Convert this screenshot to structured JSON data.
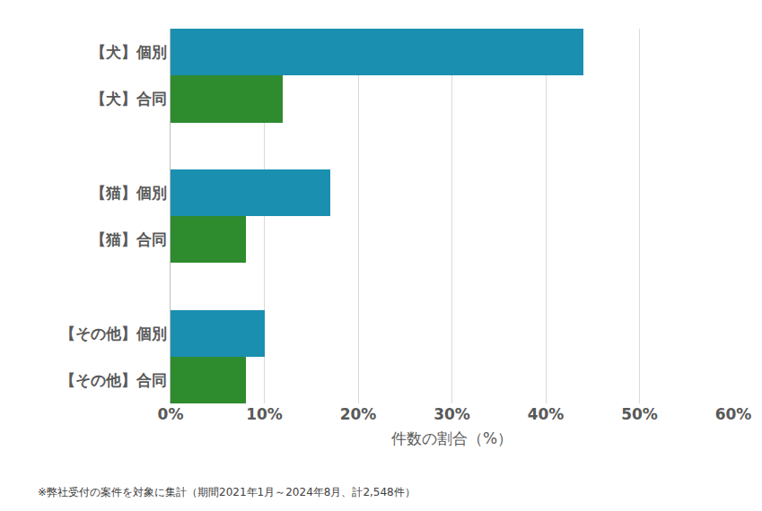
{
  "chart_data": {
    "type": "bar",
    "orientation": "horizontal",
    "categories": [
      "【犬】個別",
      "【犬】合同",
      null,
      "【猫】個別",
      "【猫】合同",
      null,
      "【その他】個別",
      "【その他】合同"
    ],
    "values": [
      44,
      12,
      null,
      17,
      8,
      null,
      10,
      8
    ],
    "colors": [
      "#1a8fb0",
      "#2e8b2e",
      null,
      "#1a8fb0",
      "#2e8b2e",
      null,
      "#1a8fb0",
      "#2e8b2e"
    ],
    "x_label": "件数の割合（%）",
    "note": "※弊社受付の案件を対象に集計（期間2021年1月～2024年8月、計2,548件）",
    "xlim": [
      0,
      60
    ],
    "xticks": [
      {
        "value": 0,
        "label": "0%"
      },
      {
        "value": 10,
        "label": "10%"
      },
      {
        "value": 20,
        "label": "20%"
      },
      {
        "value": 30,
        "label": "30%"
      },
      {
        "value": 40,
        "label": "40%"
      },
      {
        "value": 50,
        "label": "50%"
      },
      {
        "value": 60,
        "label": "60%"
      }
    ],
    "grid": true
  }
}
